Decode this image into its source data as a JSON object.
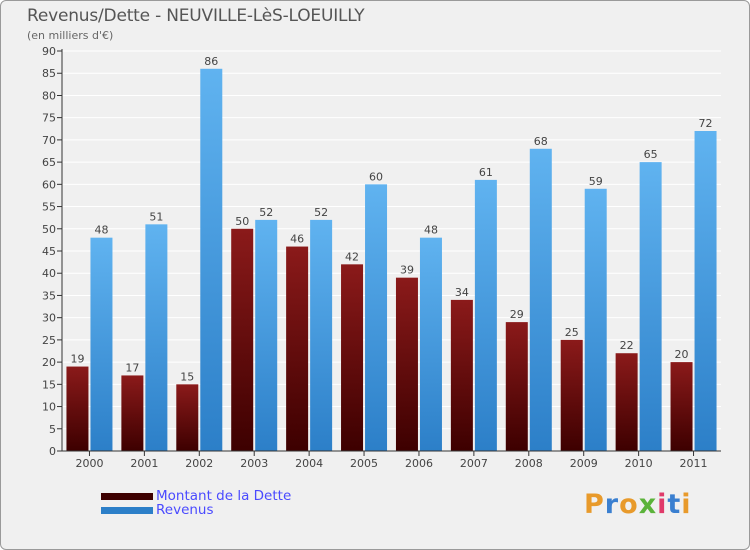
{
  "title": "Revenus/Dette - NEUVILLE-LèS-LOEUILLY",
  "subtitle": "(en milliers d'€)",
  "logo_text": "Proxiti",
  "colors": {
    "debt_top": "#8b1a1a",
    "debt_bottom": "#3d0000",
    "revenue_top": "#60b3f0",
    "revenue_bottom": "#2c7fc8",
    "grid": "#ffffff",
    "axis": "#333333",
    "legend_text": "#4a4aff"
  },
  "chart_data": {
    "type": "bar",
    "title": "Revenus/Dette - NEUVILLE-LèS-LOEUILLY",
    "subtitle": "(en milliers d'€)",
    "xlabel": "",
    "ylabel": "",
    "categories": [
      "2000",
      "2001",
      "2002",
      "2003",
      "2004",
      "2005",
      "2006",
      "2007",
      "2008",
      "2009",
      "2010",
      "2011"
    ],
    "series": [
      {
        "name": "Montant de la Dette",
        "values": [
          19,
          17,
          15,
          50,
          46,
          42,
          39,
          34,
          29,
          25,
          22,
          20
        ]
      },
      {
        "name": "Revenus",
        "values": [
          48,
          51,
          86,
          52,
          52,
          60,
          48,
          61,
          68,
          59,
          65,
          72
        ]
      }
    ],
    "ylim": [
      0,
      90
    ],
    "yticks": [
      0,
      5,
      10,
      15,
      20,
      25,
      30,
      35,
      40,
      45,
      50,
      55,
      60,
      65,
      70,
      75,
      80,
      85,
      90
    ],
    "grid": true,
    "legend_position": "bottom-left"
  }
}
